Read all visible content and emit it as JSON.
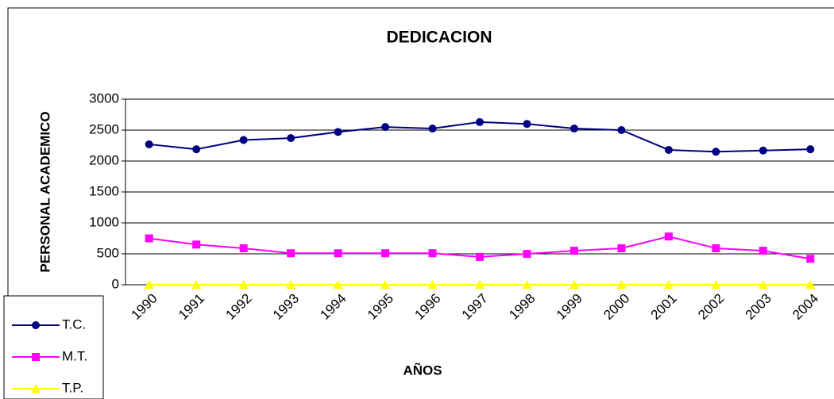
{
  "chart_data": {
    "type": "line",
    "title": "DEDICACION",
    "x_label": "AÑOS",
    "y_label": "PERSONAL ACADEMICO",
    "categories": [
      "1990",
      "1991",
      "1992",
      "1993",
      "1994",
      "1995",
      "1996",
      "1997",
      "1998",
      "1999",
      "2000",
      "2001",
      "2002",
      "2003",
      "2004"
    ],
    "series": [
      {
        "name": "T.C.",
        "color": "#000080",
        "marker": "circle",
        "values": [
          2270,
          2190,
          2340,
          2370,
          2470,
          2550,
          2525,
          2630,
          2600,
          2525,
          2500,
          2180,
          2150,
          2170,
          2190
        ]
      },
      {
        "name": "M.T.",
        "color": "#ff00ff",
        "marker": "square",
        "values": [
          750,
          650,
          590,
          510,
          510,
          510,
          510,
          450,
          500,
          550,
          590,
          780,
          590,
          550,
          420
        ]
      },
      {
        "name": "T.P.",
        "color": "#ffff00",
        "marker": "triangle",
        "values": [
          0,
          0,
          0,
          0,
          0,
          0,
          0,
          0,
          0,
          0,
          0,
          0,
          0,
          0,
          0
        ]
      }
    ],
    "ylim": [
      0,
      3000
    ],
    "yticks": [
      0,
      500,
      1000,
      1500,
      2000,
      2500,
      3000
    ],
    "grid": true,
    "legend": "bottom-left"
  }
}
